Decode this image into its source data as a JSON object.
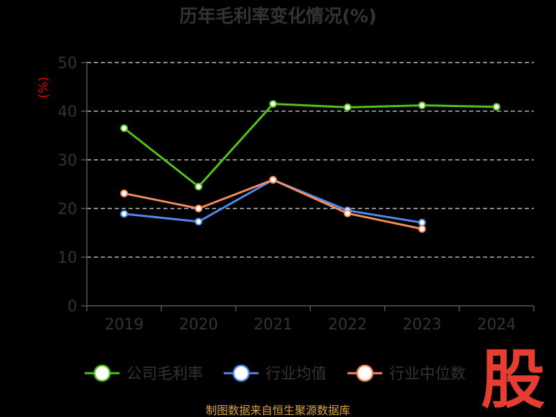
{
  "chart_data": {
    "type": "line",
    "title": "历年毛利率变化情况(%)",
    "ylabel": "(%)",
    "categories": [
      "2019",
      "2020",
      "2021",
      "2022",
      "2023",
      "2024"
    ],
    "ylim": [
      0,
      50
    ],
    "yticks": [
      "0",
      "10",
      "20",
      "30",
      "40",
      "50"
    ],
    "grid": true,
    "legend_position": "bottom",
    "series": [
      {
        "name": "公司毛利率",
        "color": "#52c41a",
        "values": [
          36.5,
          24.5,
          41.5,
          40.8,
          41.2,
          40.9
        ]
      },
      {
        "name": "行业均值",
        "color": "#4f8bea",
        "values": [
          18.9,
          17.3,
          25.9,
          19.6,
          17.1,
          null
        ]
      },
      {
        "name": "行业中位数",
        "color": "#f78c5a",
        "values": [
          23.1,
          20.0,
          25.9,
          19.0,
          15.8,
          null
        ]
      }
    ]
  },
  "source_note": "制图数据来自恒生聚源数据库",
  "watermark": "股"
}
